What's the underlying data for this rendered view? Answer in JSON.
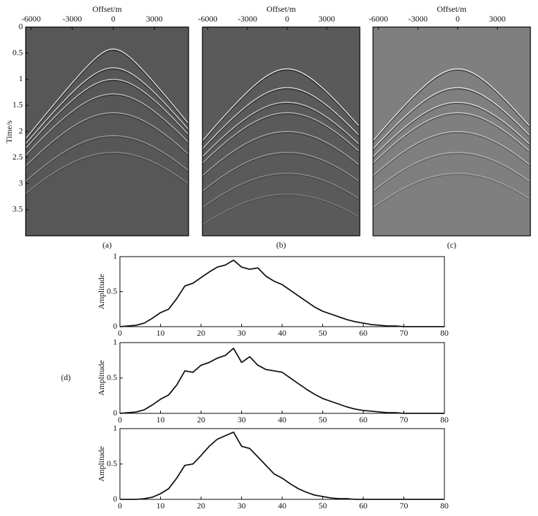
{
  "chart_data": [
    {
      "type": "image",
      "title": "Offset/m",
      "ylabel": "Time/s",
      "caption": "(a)",
      "background": "#575757",
      "xlim": [
        -6400,
        5500
      ],
      "xticks": [
        -6000,
        -3000,
        0,
        3000
      ],
      "ylim": [
        0,
        4.0
      ],
      "yticks": [
        0,
        0.5,
        1.0,
        1.5,
        2.0,
        2.5,
        3.0,
        3.5
      ]
    },
    {
      "type": "image",
      "title": "Offset/m",
      "caption": "(b)",
      "background": "#5a5a5a",
      "xlim": [
        -6400,
        5500
      ],
      "xticks": [
        -6000,
        -3000,
        0,
        3000
      ],
      "ylim": [
        0,
        4.0
      ]
    },
    {
      "type": "image",
      "title": "Offset/m",
      "caption": "(c)",
      "background": "#7f7f7f",
      "xlim": [
        -6400,
        5500
      ],
      "xticks": [
        -6000,
        -3000,
        0,
        3000
      ],
      "ylim": [
        0,
        4.0
      ]
    },
    {
      "type": "line",
      "ylabel": "Amplitude",
      "caption": "(d)",
      "color": "#111111",
      "x": [
        0,
        2,
        4,
        6,
        8,
        10,
        12,
        14,
        16,
        18,
        20,
        22,
        24,
        26,
        28,
        30,
        32,
        34,
        36,
        38,
        40,
        42,
        44,
        46,
        48,
        50,
        52,
        54,
        56,
        58,
        60,
        62,
        64,
        66,
        68,
        70,
        72,
        74,
        76,
        78,
        80
      ],
      "values": [
        0,
        0.01,
        0.02,
        0.05,
        0.12,
        0.2,
        0.25,
        0.4,
        0.58,
        0.62,
        0.7,
        0.78,
        0.85,
        0.88,
        0.95,
        0.85,
        0.82,
        0.84,
        0.72,
        0.65,
        0.6,
        0.52,
        0.44,
        0.36,
        0.28,
        0.22,
        0.18,
        0.14,
        0.1,
        0.07,
        0.05,
        0.03,
        0.02,
        0.01,
        0.01,
        0,
        0,
        0,
        0,
        0,
        0
      ],
      "xlim": [
        0,
        80
      ],
      "xticks": [
        0,
        10,
        20,
        30,
        40,
        50,
        60,
        70,
        80
      ],
      "ylim": [
        0,
        1
      ],
      "yticks": [
        0,
        0.5,
        1
      ]
    },
    {
      "type": "line",
      "ylabel": "Amplitude",
      "color": "#111111",
      "x": [
        0,
        2,
        4,
        6,
        8,
        10,
        12,
        14,
        16,
        18,
        20,
        22,
        24,
        26,
        28,
        30,
        32,
        34,
        36,
        38,
        40,
        42,
        44,
        46,
        48,
        50,
        52,
        54,
        56,
        58,
        60,
        62,
        64,
        66,
        68,
        70,
        72,
        74,
        76,
        78,
        80
      ],
      "values": [
        0,
        0.01,
        0.02,
        0.05,
        0.12,
        0.2,
        0.26,
        0.4,
        0.6,
        0.58,
        0.68,
        0.72,
        0.78,
        0.82,
        0.92,
        0.72,
        0.8,
        0.68,
        0.62,
        0.6,
        0.58,
        0.5,
        0.42,
        0.34,
        0.27,
        0.21,
        0.17,
        0.13,
        0.09,
        0.06,
        0.04,
        0.03,
        0.02,
        0.01,
        0.01,
        0,
        0,
        0,
        0,
        0,
        0
      ],
      "xlim": [
        0,
        80
      ],
      "xticks": [
        0,
        10,
        20,
        30,
        40,
        50,
        60,
        70,
        80
      ],
      "ylim": [
        0,
        1
      ],
      "yticks": [
        0,
        0.5,
        1
      ]
    },
    {
      "type": "line",
      "ylabel": "Amplitude",
      "color": "#111111",
      "x": [
        0,
        2,
        4,
        6,
        8,
        10,
        12,
        14,
        16,
        18,
        20,
        22,
        24,
        26,
        28,
        30,
        32,
        34,
        36,
        38,
        40,
        42,
        44,
        46,
        48,
        50,
        52,
        54,
        56,
        58,
        60,
        62,
        64,
        66,
        68,
        70,
        72,
        74,
        76,
        78,
        80
      ],
      "values": [
        0,
        0,
        0,
        0.01,
        0.03,
        0.08,
        0.15,
        0.3,
        0.48,
        0.5,
        0.62,
        0.75,
        0.85,
        0.9,
        0.95,
        0.75,
        0.72,
        0.6,
        0.48,
        0.36,
        0.3,
        0.22,
        0.15,
        0.1,
        0.06,
        0.04,
        0.02,
        0.01,
        0.01,
        0,
        0,
        0,
        0,
        0,
        0,
        0,
        0,
        0,
        0,
        0,
        0
      ],
      "xlim": [
        0,
        80
      ],
      "xticks": [
        0,
        10,
        20,
        30,
        40,
        50,
        60,
        70,
        80
      ],
      "ylim": [
        0,
        1
      ],
      "yticks": [
        0,
        0.5,
        1
      ]
    }
  ]
}
